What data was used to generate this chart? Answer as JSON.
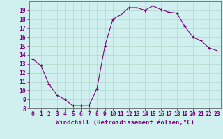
{
  "x": [
    0,
    1,
    2,
    3,
    4,
    5,
    6,
    7,
    8,
    9,
    10,
    11,
    12,
    13,
    14,
    15,
    16,
    17,
    18,
    19,
    20,
    21,
    22,
    23
  ],
  "y": [
    13.5,
    12.8,
    10.7,
    9.5,
    9.0,
    8.3,
    8.3,
    8.3,
    10.2,
    15.0,
    18.0,
    18.5,
    19.3,
    19.3,
    19.0,
    19.5,
    19.1,
    18.8,
    18.7,
    17.2,
    16.0,
    15.6,
    14.8,
    14.5
  ],
  "line_color": "#800080",
  "marker": "+",
  "marker_size": 3,
  "xlabel": "Windchill (Refroidissement éolien,°C)",
  "xlabel_fontsize": 6.5,
  "ylabel_ticks": [
    8,
    9,
    10,
    11,
    12,
    13,
    14,
    15,
    16,
    17,
    18,
    19
  ],
  "xlim": [
    -0.5,
    23.5
  ],
  "ylim": [
    8,
    20
  ],
  "background_color": "#cff0ee",
  "grid_color": "#b0d8cc",
  "tick_color": "#800080",
  "tick_fontsize": 5.8,
  "title": ""
}
